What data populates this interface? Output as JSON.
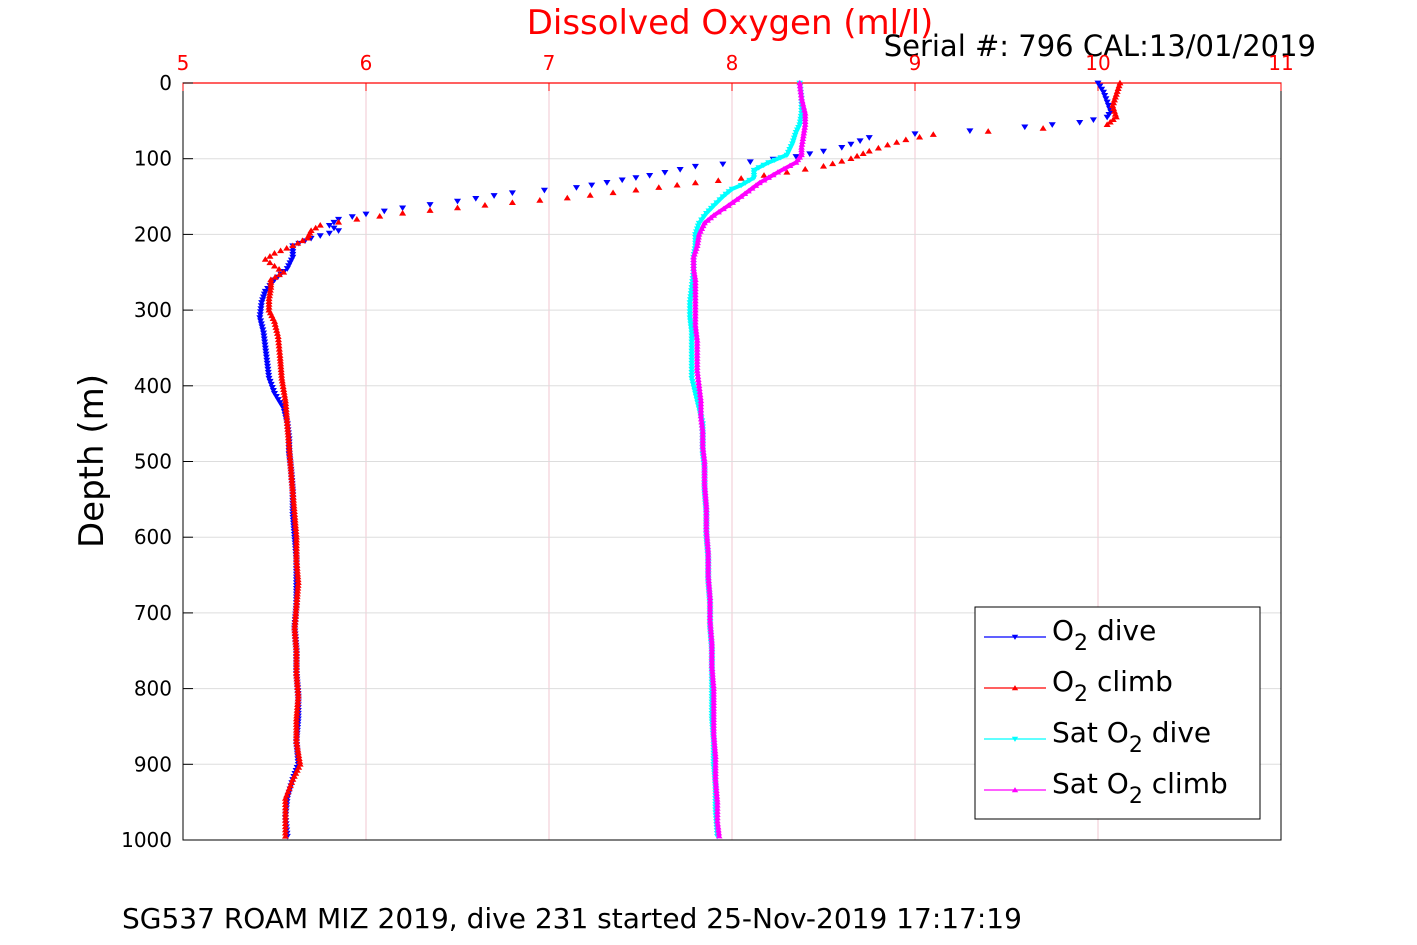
{
  "chart_data": {
    "type": "scatter",
    "title": "Dissolved Oxygen (ml/l)",
    "subtitle": "Serial #: 796  CAL:13/01/2019",
    "footer": "SG537 ROAM MIZ 2019, dive 231 started 25-Nov-2019 17:17:19",
    "xlabel": "",
    "ylabel": "Depth (m)",
    "xlim": [
      5,
      11
    ],
    "ylim": [
      0,
      1000
    ],
    "y_reversed": true,
    "x_axis_position": "top",
    "xticks": [
      "5",
      "6",
      "7",
      "8",
      "9",
      "10",
      "11"
    ],
    "yticks": [
      "0",
      "100",
      "200",
      "300",
      "400",
      "500",
      "600",
      "700",
      "800",
      "900",
      "1000"
    ],
    "grid": true,
    "legend_position": "bottom-right",
    "series": [
      {
        "name": "O2 dive",
        "legend_main": "O",
        "legend_sub": "2",
        "legend_rest": " dive",
        "color": "#0000ff",
        "marker": "triangle-down",
        "points": [
          [
            10.0,
            0
          ],
          [
            10.03,
            12
          ],
          [
            10.05,
            25
          ],
          [
            10.07,
            38
          ],
          [
            10.05,
            45
          ],
          [
            9.9,
            52
          ],
          [
            9.6,
            58
          ],
          [
            9.3,
            63
          ],
          [
            9.0,
            67
          ],
          [
            8.75,
            72
          ],
          [
            8.6,
            85
          ],
          [
            8.5,
            90
          ],
          [
            8.35,
            97
          ],
          [
            8.1,
            104
          ],
          [
            7.8,
            110
          ],
          [
            7.55,
            122
          ],
          [
            7.4,
            128
          ],
          [
            7.15,
            138
          ],
          [
            6.8,
            145
          ],
          [
            6.5,
            156
          ],
          [
            6.2,
            165
          ],
          [
            6.0,
            173
          ],
          [
            5.85,
            180
          ],
          [
            5.8,
            188
          ],
          [
            5.85,
            195
          ],
          [
            5.7,
            205
          ],
          [
            5.6,
            215
          ],
          [
            5.6,
            230
          ],
          [
            5.57,
            245
          ],
          [
            5.5,
            260
          ],
          [
            5.45,
            275
          ],
          [
            5.43,
            290
          ],
          [
            5.42,
            310
          ],
          [
            5.44,
            330
          ],
          [
            5.45,
            350
          ],
          [
            5.46,
            370
          ],
          [
            5.47,
            390
          ],
          [
            5.5,
            410
          ],
          [
            5.55,
            430
          ],
          [
            5.57,
            450
          ],
          [
            5.58,
            470
          ],
          [
            5.58,
            490
          ],
          [
            5.59,
            510
          ],
          [
            5.6,
            540
          ],
          [
            5.6,
            570
          ],
          [
            5.61,
            600
          ],
          [
            5.62,
            630
          ],
          [
            5.62,
            660
          ],
          [
            5.62,
            690
          ],
          [
            5.61,
            720
          ],
          [
            5.62,
            750
          ],
          [
            5.62,
            780
          ],
          [
            5.63,
            810
          ],
          [
            5.63,
            840
          ],
          [
            5.62,
            870
          ],
          [
            5.63,
            900
          ],
          [
            5.6,
            920
          ],
          [
            5.57,
            945
          ],
          [
            5.56,
            970
          ],
          [
            5.57,
            995
          ]
        ]
      },
      {
        "name": "O2 climb",
        "legend_main": "O",
        "legend_sub": "2",
        "legend_rest": " climb",
        "color": "#ff0000",
        "marker": "triangle-up",
        "points": [
          [
            10.12,
            0
          ],
          [
            10.1,
            15
          ],
          [
            10.08,
            30
          ],
          [
            10.1,
            45
          ],
          [
            10.05,
            55
          ],
          [
            9.7,
            60
          ],
          [
            9.4,
            64
          ],
          [
            9.1,
            68
          ],
          [
            8.95,
            75
          ],
          [
            8.85,
            82
          ],
          [
            8.75,
            90
          ],
          [
            8.65,
            100
          ],
          [
            8.5,
            110
          ],
          [
            8.3,
            118
          ],
          [
            8.05,
            126
          ],
          [
            7.8,
            132
          ],
          [
            7.6,
            138
          ],
          [
            7.35,
            145
          ],
          [
            7.1,
            152
          ],
          [
            6.8,
            158
          ],
          [
            6.5,
            165
          ],
          [
            6.2,
            172
          ],
          [
            5.95,
            180
          ],
          [
            5.75,
            188
          ],
          [
            5.7,
            195
          ],
          [
            5.68,
            205
          ],
          [
            5.6,
            215
          ],
          [
            5.5,
            225
          ],
          [
            5.45,
            233
          ],
          [
            5.5,
            242
          ],
          [
            5.55,
            250
          ],
          [
            5.48,
            260
          ],
          [
            5.48,
            270
          ],
          [
            5.47,
            285
          ],
          [
            5.47,
            300
          ],
          [
            5.5,
            315
          ],
          [
            5.52,
            335
          ],
          [
            5.53,
            360
          ],
          [
            5.54,
            390
          ],
          [
            5.56,
            420
          ],
          [
            5.57,
            450
          ],
          [
            5.58,
            480
          ],
          [
            5.59,
            510
          ],
          [
            5.6,
            540
          ],
          [
            5.61,
            570
          ],
          [
            5.62,
            600
          ],
          [
            5.62,
            630
          ],
          [
            5.63,
            660
          ],
          [
            5.62,
            690
          ],
          [
            5.61,
            720
          ],
          [
            5.62,
            750
          ],
          [
            5.62,
            780
          ],
          [
            5.63,
            810
          ],
          [
            5.62,
            840
          ],
          [
            5.62,
            870
          ],
          [
            5.64,
            900
          ],
          [
            5.6,
            920
          ],
          [
            5.56,
            945
          ],
          [
            5.56,
            970
          ],
          [
            5.56,
            995
          ]
        ]
      },
      {
        "name": "Sat O2 dive",
        "legend_main": "Sat O",
        "legend_sub": "2",
        "legend_rest": " dive",
        "color": "#00ffff",
        "marker": "triangle-down",
        "points": [
          [
            8.37,
            0
          ],
          [
            8.38,
            20
          ],
          [
            8.38,
            40
          ],
          [
            8.37,
            55
          ],
          [
            8.35,
            65
          ],
          [
            8.33,
            80
          ],
          [
            8.3,
            95
          ],
          [
            8.2,
            105
          ],
          [
            8.12,
            115
          ],
          [
            8.12,
            125
          ],
          [
            8.05,
            135
          ],
          [
            8.0,
            140
          ],
          [
            7.95,
            150
          ],
          [
            7.9,
            162
          ],
          [
            7.86,
            172
          ],
          [
            7.82,
            185
          ],
          [
            7.8,
            200
          ],
          [
            7.8,
            215
          ],
          [
            7.79,
            230
          ],
          [
            7.79,
            250
          ],
          [
            7.78,
            270
          ],
          [
            7.77,
            290
          ],
          [
            7.77,
            310
          ],
          [
            7.78,
            330
          ],
          [
            7.78,
            350
          ],
          [
            7.78,
            370
          ],
          [
            7.78,
            390
          ],
          [
            7.8,
            410
          ],
          [
            7.82,
            430
          ],
          [
            7.84,
            450
          ],
          [
            7.84,
            470
          ],
          [
            7.84,
            490
          ],
          [
            7.85,
            510
          ],
          [
            7.85,
            540
          ],
          [
            7.86,
            570
          ],
          [
            7.86,
            600
          ],
          [
            7.87,
            630
          ],
          [
            7.87,
            660
          ],
          [
            7.88,
            690
          ],
          [
            7.88,
            720
          ],
          [
            7.89,
            750
          ],
          [
            7.89,
            780
          ],
          [
            7.89,
            810
          ],
          [
            7.89,
            840
          ],
          [
            7.9,
            870
          ],
          [
            7.9,
            900
          ],
          [
            7.91,
            930
          ],
          [
            7.91,
            960
          ],
          [
            7.92,
            995
          ]
        ]
      },
      {
        "name": "Sat O2 climb",
        "legend_main": "Sat O",
        "legend_sub": "2",
        "legend_rest": " climb",
        "color": "#ff00ff",
        "marker": "triangle-up",
        "points": [
          [
            8.37,
            0
          ],
          [
            8.38,
            20
          ],
          [
            8.4,
            40
          ],
          [
            8.4,
            55
          ],
          [
            8.39,
            70
          ],
          [
            8.38,
            85
          ],
          [
            8.38,
            95
          ],
          [
            8.35,
            105
          ],
          [
            8.25,
            118
          ],
          [
            8.15,
            132
          ],
          [
            8.05,
            150
          ],
          [
            7.98,
            162
          ],
          [
            7.9,
            175
          ],
          [
            7.85,
            185
          ],
          [
            7.82,
            200
          ],
          [
            7.81,
            215
          ],
          [
            7.79,
            230
          ],
          [
            7.79,
            245
          ],
          [
            7.8,
            260
          ],
          [
            7.8,
            280
          ],
          [
            7.8,
            300
          ],
          [
            7.8,
            320
          ],
          [
            7.81,
            340
          ],
          [
            7.81,
            360
          ],
          [
            7.81,
            380
          ],
          [
            7.82,
            400
          ],
          [
            7.83,
            420
          ],
          [
            7.83,
            440
          ],
          [
            7.84,
            460
          ],
          [
            7.84,
            480
          ],
          [
            7.85,
            500
          ],
          [
            7.85,
            530
          ],
          [
            7.86,
            560
          ],
          [
            7.86,
            590
          ],
          [
            7.87,
            620
          ],
          [
            7.87,
            650
          ],
          [
            7.88,
            680
          ],
          [
            7.88,
            710
          ],
          [
            7.89,
            740
          ],
          [
            7.89,
            770
          ],
          [
            7.9,
            800
          ],
          [
            7.9,
            830
          ],
          [
            7.9,
            860
          ],
          [
            7.91,
            890
          ],
          [
            7.91,
            920
          ],
          [
            7.92,
            950
          ],
          [
            7.92,
            975
          ],
          [
            7.93,
            995
          ]
        ]
      }
    ]
  },
  "colors": {
    "title": "#ff0000",
    "xtick": "#ff0000",
    "grid_vertical": "#f2c7d0",
    "grid_horizontal": "#dddddd",
    "axis": "#000000",
    "axis_top": "#ff0000"
  }
}
